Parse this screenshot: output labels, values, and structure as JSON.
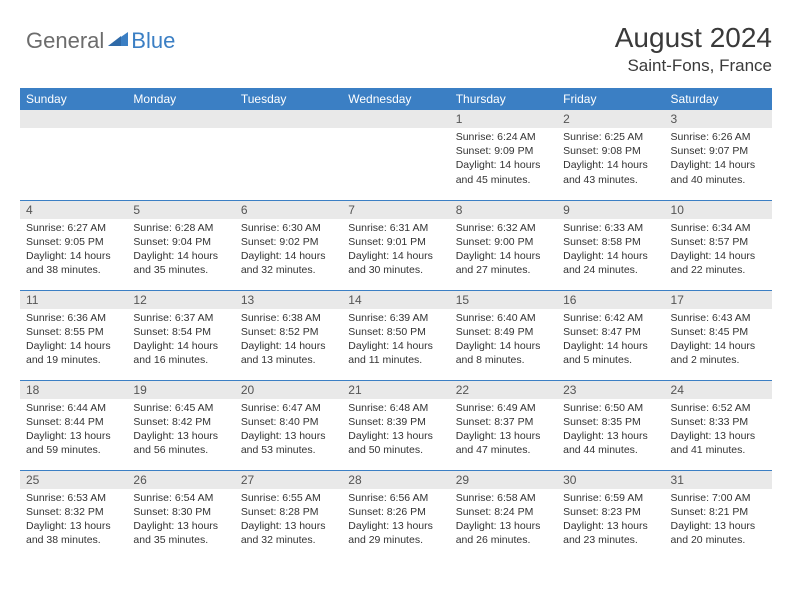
{
  "brand": {
    "part1": "General",
    "part2": "Blue"
  },
  "title": "August 2024",
  "location": "Saint-Fons, France",
  "colors": {
    "header_bg": "#3b7fc4",
    "header_fg": "#ffffff",
    "daynum_bg": "#e9e9e9",
    "rule": "#3b7fc4",
    "text": "#333333",
    "brand_gray": "#6c6c6c",
    "brand_blue": "#3b7fc4"
  },
  "weekdays": [
    "Sunday",
    "Monday",
    "Tuesday",
    "Wednesday",
    "Thursday",
    "Friday",
    "Saturday"
  ],
  "weeks": [
    [
      {
        "n": "",
        "sr": "",
        "ss": "",
        "dl": ""
      },
      {
        "n": "",
        "sr": "",
        "ss": "",
        "dl": ""
      },
      {
        "n": "",
        "sr": "",
        "ss": "",
        "dl": ""
      },
      {
        "n": "",
        "sr": "",
        "ss": "",
        "dl": ""
      },
      {
        "n": "1",
        "sr": "Sunrise: 6:24 AM",
        "ss": "Sunset: 9:09 PM",
        "dl": "Daylight: 14 hours and 45 minutes."
      },
      {
        "n": "2",
        "sr": "Sunrise: 6:25 AM",
        "ss": "Sunset: 9:08 PM",
        "dl": "Daylight: 14 hours and 43 minutes."
      },
      {
        "n": "3",
        "sr": "Sunrise: 6:26 AM",
        "ss": "Sunset: 9:07 PM",
        "dl": "Daylight: 14 hours and 40 minutes."
      }
    ],
    [
      {
        "n": "4",
        "sr": "Sunrise: 6:27 AM",
        "ss": "Sunset: 9:05 PM",
        "dl": "Daylight: 14 hours and 38 minutes."
      },
      {
        "n": "5",
        "sr": "Sunrise: 6:28 AM",
        "ss": "Sunset: 9:04 PM",
        "dl": "Daylight: 14 hours and 35 minutes."
      },
      {
        "n": "6",
        "sr": "Sunrise: 6:30 AM",
        "ss": "Sunset: 9:02 PM",
        "dl": "Daylight: 14 hours and 32 minutes."
      },
      {
        "n": "7",
        "sr": "Sunrise: 6:31 AM",
        "ss": "Sunset: 9:01 PM",
        "dl": "Daylight: 14 hours and 30 minutes."
      },
      {
        "n": "8",
        "sr": "Sunrise: 6:32 AM",
        "ss": "Sunset: 9:00 PM",
        "dl": "Daylight: 14 hours and 27 minutes."
      },
      {
        "n": "9",
        "sr": "Sunrise: 6:33 AM",
        "ss": "Sunset: 8:58 PM",
        "dl": "Daylight: 14 hours and 24 minutes."
      },
      {
        "n": "10",
        "sr": "Sunrise: 6:34 AM",
        "ss": "Sunset: 8:57 PM",
        "dl": "Daylight: 14 hours and 22 minutes."
      }
    ],
    [
      {
        "n": "11",
        "sr": "Sunrise: 6:36 AM",
        "ss": "Sunset: 8:55 PM",
        "dl": "Daylight: 14 hours and 19 minutes."
      },
      {
        "n": "12",
        "sr": "Sunrise: 6:37 AM",
        "ss": "Sunset: 8:54 PM",
        "dl": "Daylight: 14 hours and 16 minutes."
      },
      {
        "n": "13",
        "sr": "Sunrise: 6:38 AM",
        "ss": "Sunset: 8:52 PM",
        "dl": "Daylight: 14 hours and 13 minutes."
      },
      {
        "n": "14",
        "sr": "Sunrise: 6:39 AM",
        "ss": "Sunset: 8:50 PM",
        "dl": "Daylight: 14 hours and 11 minutes."
      },
      {
        "n": "15",
        "sr": "Sunrise: 6:40 AM",
        "ss": "Sunset: 8:49 PM",
        "dl": "Daylight: 14 hours and 8 minutes."
      },
      {
        "n": "16",
        "sr": "Sunrise: 6:42 AM",
        "ss": "Sunset: 8:47 PM",
        "dl": "Daylight: 14 hours and 5 minutes."
      },
      {
        "n": "17",
        "sr": "Sunrise: 6:43 AM",
        "ss": "Sunset: 8:45 PM",
        "dl": "Daylight: 14 hours and 2 minutes."
      }
    ],
    [
      {
        "n": "18",
        "sr": "Sunrise: 6:44 AM",
        "ss": "Sunset: 8:44 PM",
        "dl": "Daylight: 13 hours and 59 minutes."
      },
      {
        "n": "19",
        "sr": "Sunrise: 6:45 AM",
        "ss": "Sunset: 8:42 PM",
        "dl": "Daylight: 13 hours and 56 minutes."
      },
      {
        "n": "20",
        "sr": "Sunrise: 6:47 AM",
        "ss": "Sunset: 8:40 PM",
        "dl": "Daylight: 13 hours and 53 minutes."
      },
      {
        "n": "21",
        "sr": "Sunrise: 6:48 AM",
        "ss": "Sunset: 8:39 PM",
        "dl": "Daylight: 13 hours and 50 minutes."
      },
      {
        "n": "22",
        "sr": "Sunrise: 6:49 AM",
        "ss": "Sunset: 8:37 PM",
        "dl": "Daylight: 13 hours and 47 minutes."
      },
      {
        "n": "23",
        "sr": "Sunrise: 6:50 AM",
        "ss": "Sunset: 8:35 PM",
        "dl": "Daylight: 13 hours and 44 minutes."
      },
      {
        "n": "24",
        "sr": "Sunrise: 6:52 AM",
        "ss": "Sunset: 8:33 PM",
        "dl": "Daylight: 13 hours and 41 minutes."
      }
    ],
    [
      {
        "n": "25",
        "sr": "Sunrise: 6:53 AM",
        "ss": "Sunset: 8:32 PM",
        "dl": "Daylight: 13 hours and 38 minutes."
      },
      {
        "n": "26",
        "sr": "Sunrise: 6:54 AM",
        "ss": "Sunset: 8:30 PM",
        "dl": "Daylight: 13 hours and 35 minutes."
      },
      {
        "n": "27",
        "sr": "Sunrise: 6:55 AM",
        "ss": "Sunset: 8:28 PM",
        "dl": "Daylight: 13 hours and 32 minutes."
      },
      {
        "n": "28",
        "sr": "Sunrise: 6:56 AM",
        "ss": "Sunset: 8:26 PM",
        "dl": "Daylight: 13 hours and 29 minutes."
      },
      {
        "n": "29",
        "sr": "Sunrise: 6:58 AM",
        "ss": "Sunset: 8:24 PM",
        "dl": "Daylight: 13 hours and 26 minutes."
      },
      {
        "n": "30",
        "sr": "Sunrise: 6:59 AM",
        "ss": "Sunset: 8:23 PM",
        "dl": "Daylight: 13 hours and 23 minutes."
      },
      {
        "n": "31",
        "sr": "Sunrise: 7:00 AM",
        "ss": "Sunset: 8:21 PM",
        "dl": "Daylight: 13 hours and 20 minutes."
      }
    ]
  ]
}
